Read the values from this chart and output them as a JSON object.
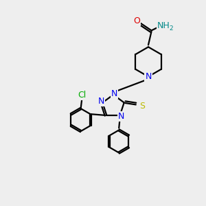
{
  "background_color": "#eeeeee",
  "atom_colors": {
    "C": "#000000",
    "N": "#0000ee",
    "O": "#dd0000",
    "S": "#bbbb00",
    "Cl": "#00aa00",
    "H": "#008888"
  },
  "figsize": [
    3.0,
    3.0
  ],
  "dpi": 100
}
